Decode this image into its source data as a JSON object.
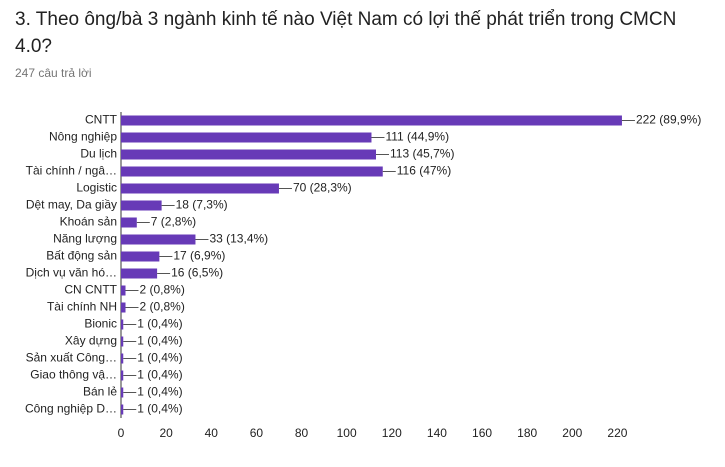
{
  "chart_data": {
    "type": "bar",
    "orientation": "horizontal",
    "title": "3. Theo ông/bà 3 ngành kinh tế nào Việt Nam có lợi thế phát triển trong CMCN 4.0?",
    "subtitle": "247 câu trả lời",
    "categories": [
      "CNTT",
      "Nông nghiệp",
      "Du lịch",
      "Tài chính / ngâ…",
      "Logistic",
      "Dệt may, Da giầy",
      "Khoán sản",
      "Năng lượng",
      "Bất động sản",
      "Dịch vụ văn hó…",
      "CN CNTT",
      "Tài chính NH",
      "Bionic",
      "Xây dựng",
      "Sản xuất Công…",
      "Giao thông vậ…",
      "Bán lẻ",
      "Công nghiệp D…"
    ],
    "values": [
      222,
      111,
      113,
      116,
      70,
      18,
      7,
      33,
      17,
      16,
      2,
      2,
      1,
      1,
      1,
      1,
      1,
      1
    ],
    "value_labels": [
      "222 (89,9%)",
      "111 (44,9%)",
      "113 (45,7%)",
      "116 (47%)",
      "70 (28,3%)",
      "18 (7,3%)",
      "7 (2,8%)",
      "33 (13,4%)",
      "17 (6,9%)",
      "16 (6,5%)",
      "2 (0,8%)",
      "2 (0,8%)",
      "1 (0,4%)",
      "1 (0,4%)",
      "1 (0,4%)",
      "1 (0,4%)",
      "1 (0,4%)",
      "1 (0,4%)"
    ],
    "color": "#673ab7",
    "xlim": [
      0,
      230
    ],
    "xticks": [
      0,
      20,
      40,
      60,
      80,
      100,
      120,
      140,
      160,
      180,
      200,
      220
    ]
  }
}
